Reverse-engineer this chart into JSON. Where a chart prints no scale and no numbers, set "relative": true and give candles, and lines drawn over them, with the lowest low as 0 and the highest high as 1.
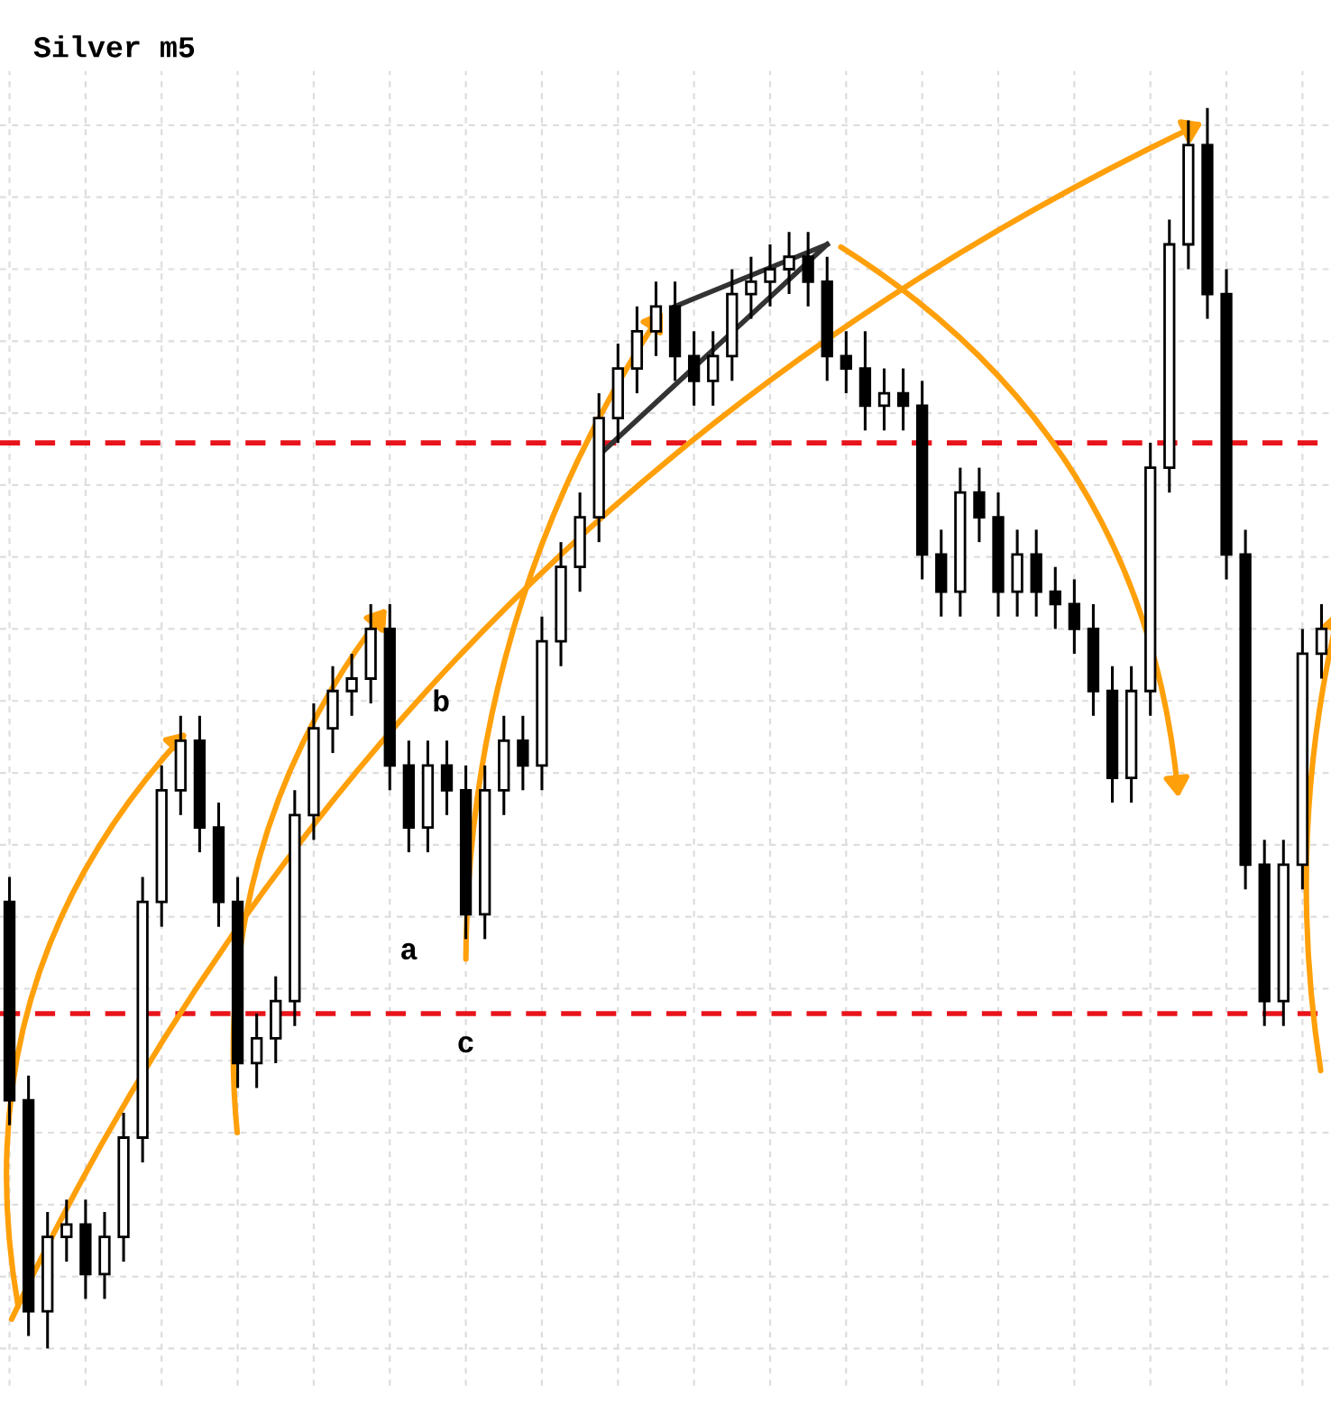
{
  "chart_data": {
    "type": "candlestick",
    "title": "Silver m5",
    "relative": true,
    "color": "#000000",
    "grid": true,
    "tick_labels": false,
    "categories": [
      null,
      null,
      null,
      null,
      null,
      null,
      null,
      null,
      null,
      null,
      null,
      null,
      null,
      null,
      null,
      null,
      null,
      null,
      null,
      null,
      null,
      null,
      null,
      null,
      null,
      null,
      null,
      null,
      null,
      null,
      null,
      null,
      null,
      null,
      null,
      null,
      null,
      null,
      null,
      null,
      null,
      null,
      null,
      null,
      null,
      null,
      null,
      null,
      null,
      null,
      null,
      null,
      null,
      null,
      null,
      null,
      null,
      null,
      null,
      null,
      null,
      null,
      null,
      null,
      null,
      null,
      null,
      null,
      null,
      null
    ],
    "ohlc": [
      [
        0.36,
        0.38,
        0.18,
        0.2
      ],
      [
        0.2,
        0.22,
        0.01,
        0.03
      ],
      [
        0.03,
        0.11,
        0,
        0.09
      ],
      [
        0.09,
        0.12,
        0.07,
        0.1
      ],
      [
        0.1,
        0.12,
        0.04,
        0.06
      ],
      [
        0.06,
        0.11,
        0.04,
        0.09
      ],
      [
        0.09,
        0.19,
        0.07,
        0.17
      ],
      [
        0.17,
        0.38,
        0.15,
        0.36
      ],
      [
        0.36,
        0.47,
        0.34,
        0.45
      ],
      [
        0.45,
        0.51,
        0.43,
        0.49
      ],
      [
        0.49,
        0.51,
        0.4,
        0.42
      ],
      [
        0.42,
        0.44,
        0.34,
        0.36
      ],
      [
        0.36,
        0.38,
        0.21,
        0.23
      ],
      [
        0.23,
        0.27,
        0.21,
        0.25
      ],
      [
        0.25,
        0.3,
        0.23,
        0.28
      ],
      [
        0.28,
        0.45,
        0.26,
        0.43
      ],
      [
        0.43,
        0.52,
        0.41,
        0.5
      ],
      [
        0.5,
        0.55,
        0.48,
        0.53
      ],
      [
        0.53,
        0.56,
        0.51,
        0.54
      ],
      [
        0.54,
        0.6,
        0.52,
        0.58
      ],
      [
        0.58,
        0.6,
        0.45,
        0.47
      ],
      [
        0.47,
        0.49,
        0.4,
        0.42
      ],
      [
        0.42,
        0.49,
        0.4,
        0.47
      ],
      [
        0.47,
        0.49,
        0.43,
        0.45
      ],
      [
        0.45,
        0.47,
        0.33,
        0.35
      ],
      [
        0.35,
        0.47,
        0.33,
        0.45
      ],
      [
        0.45,
        0.51,
        0.43,
        0.49
      ],
      [
        0.49,
        0.51,
        0.45,
        0.47
      ],
      [
        0.47,
        0.59,
        0.45,
        0.57
      ],
      [
        0.57,
        0.65,
        0.55,
        0.63
      ],
      [
        0.63,
        0.69,
        0.61,
        0.67
      ],
      [
        0.67,
        0.77,
        0.65,
        0.75
      ],
      [
        0.75,
        0.81,
        0.73,
        0.79
      ],
      [
        0.79,
        0.84,
        0.77,
        0.82
      ],
      [
        0.82,
        0.86,
        0.8,
        0.84
      ],
      [
        0.84,
        0.86,
        0.78,
        0.8
      ],
      [
        0.8,
        0.82,
        0.76,
        0.78
      ],
      [
        0.78,
        0.82,
        0.76,
        0.8
      ],
      [
        0.8,
        0.87,
        0.78,
        0.85
      ],
      [
        0.85,
        0.88,
        0.83,
        0.86
      ],
      [
        0.86,
        0.89,
        0.84,
        0.87
      ],
      [
        0.87,
        0.9,
        0.85,
        0.88
      ],
      [
        0.88,
        0.9,
        0.84,
        0.86
      ],
      [
        0.86,
        0.88,
        0.78,
        0.8
      ],
      [
        0.8,
        0.82,
        0.77,
        0.79
      ],
      [
        0.79,
        0.82,
        0.74,
        0.76
      ],
      [
        0.76,
        0.79,
        0.74,
        0.77
      ],
      [
        0.77,
        0.79,
        0.74,
        0.76
      ],
      [
        0.76,
        0.78,
        0.62,
        0.64
      ],
      [
        0.64,
        0.66,
        0.59,
        0.61
      ],
      [
        0.61,
        0.71,
        0.59,
        0.69
      ],
      [
        0.69,
        0.71,
        0.65,
        0.67
      ],
      [
        0.67,
        0.69,
        0.59,
        0.61
      ],
      [
        0.61,
        0.66,
        0.59,
        0.64
      ],
      [
        0.64,
        0.66,
        0.59,
        0.61
      ],
      [
        0.61,
        0.63,
        0.58,
        0.6
      ],
      [
        0.6,
        0.62,
        0.56,
        0.58
      ],
      [
        0.58,
        0.6,
        0.51,
        0.53
      ],
      [
        0.53,
        0.55,
        0.44,
        0.46
      ],
      [
        0.46,
        0.55,
        0.44,
        0.53
      ],
      [
        0.53,
        0.73,
        0.51,
        0.71
      ],
      [
        0.71,
        0.91,
        0.69,
        0.89
      ],
      [
        0.89,
        0.99,
        0.87,
        0.97
      ],
      [
        0.97,
        1,
        0.83,
        0.85
      ],
      [
        0.85,
        0.87,
        0.62,
        0.64
      ],
      [
        0.64,
        0.66,
        0.37,
        0.39
      ],
      [
        0.39,
        0.41,
        0.26,
        0.28
      ],
      [
        0.28,
        0.41,
        0.26,
        0.39
      ],
      [
        0.39,
        0.58,
        0.37,
        0.56
      ],
      [
        0.56,
        0.6,
        0.54,
        0.58
      ]
    ],
    "ref_lines": [
      {
        "axis": "y",
        "value": 0.27,
        "color": "#e8141b",
        "line_style": "dashed"
      },
      {
        "axis": "y",
        "value": 0.73,
        "color": "#e8141b",
        "line_style": "dashed"
      }
    ],
    "series": [
      {
        "type": "line",
        "color": "#333333",
        "values": [
          null,
          null,
          null,
          null,
          null,
          null,
          null,
          null,
          null,
          null,
          null,
          null,
          null,
          null,
          null,
          null,
          null,
          null,
          null,
          null,
          null,
          null,
          null,
          null,
          null,
          null,
          null,
          null,
          null,
          null,
          null,
          null,
          null,
          null,
          null,
          0.84,
          null,
          null,
          null,
          null,
          null,
          null,
          null,
          0.89,
          null,
          null,
          null,
          null,
          null,
          null,
          null,
          null,
          null,
          null,
          null,
          null,
          null,
          null,
          null,
          null,
          null,
          null,
          null,
          null,
          null,
          null,
          null,
          null,
          null,
          null
        ]
      },
      {
        "type": "line",
        "color": "#333333",
        "values": [
          null,
          null,
          null,
          null,
          null,
          null,
          null,
          null,
          null,
          null,
          null,
          null,
          null,
          null,
          null,
          null,
          null,
          null,
          null,
          null,
          null,
          null,
          null,
          null,
          null,
          null,
          null,
          null,
          null,
          null,
          null,
          0.72,
          null,
          null,
          null,
          null,
          null,
          null,
          null,
          null,
          null,
          null,
          null,
          0.89,
          null,
          null,
          null,
          null,
          null,
          null,
          null,
          null,
          null,
          null,
          null,
          null,
          null,
          null,
          null,
          null,
          null,
          null,
          null,
          null,
          null,
          null,
          null,
          null,
          null,
          null
        ]
      }
    ],
    "annotations": [
      "a",
      "b",
      "c"
    ]
  }
}
